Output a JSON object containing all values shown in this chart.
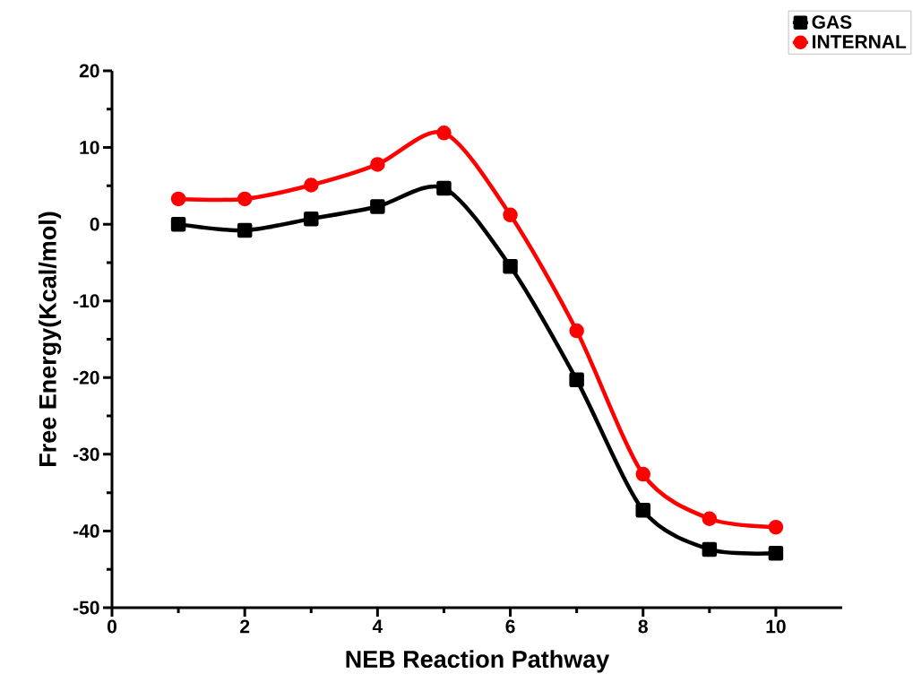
{
  "chart_data": {
    "type": "line",
    "xlabel": "NEB Reaction Pathway",
    "ylabel": "Free Energy(Kcal/mol)",
    "x": [
      1,
      2,
      3,
      4,
      5,
      6,
      7,
      8,
      9,
      10
    ],
    "series": [
      {
        "name": "GAS",
        "color": "#000000",
        "marker": "square",
        "values": [
          0,
          -0.8,
          0.7,
          2.3,
          4.7,
          -5.5,
          -20.3,
          -37.3,
          -42.4,
          -42.9
        ]
      },
      {
        "name": "INTERNAL",
        "color": "#ff0000",
        "marker": "circle",
        "values": [
          3.3,
          3.3,
          5.1,
          7.8,
          11.9,
          1.2,
          -13.9,
          -32.6,
          -38.4,
          -39.5
        ]
      }
    ],
    "xlim": [
      0,
      11
    ],
    "ylim": [
      -50,
      20
    ],
    "xticks": [
      0,
      2,
      4,
      6,
      8,
      10
    ],
    "yticks": [
      -50,
      -40,
      -30,
      -20,
      -10,
      0,
      10,
      20
    ],
    "grid": false,
    "legend": "top right",
    "line_style": "solid"
  }
}
